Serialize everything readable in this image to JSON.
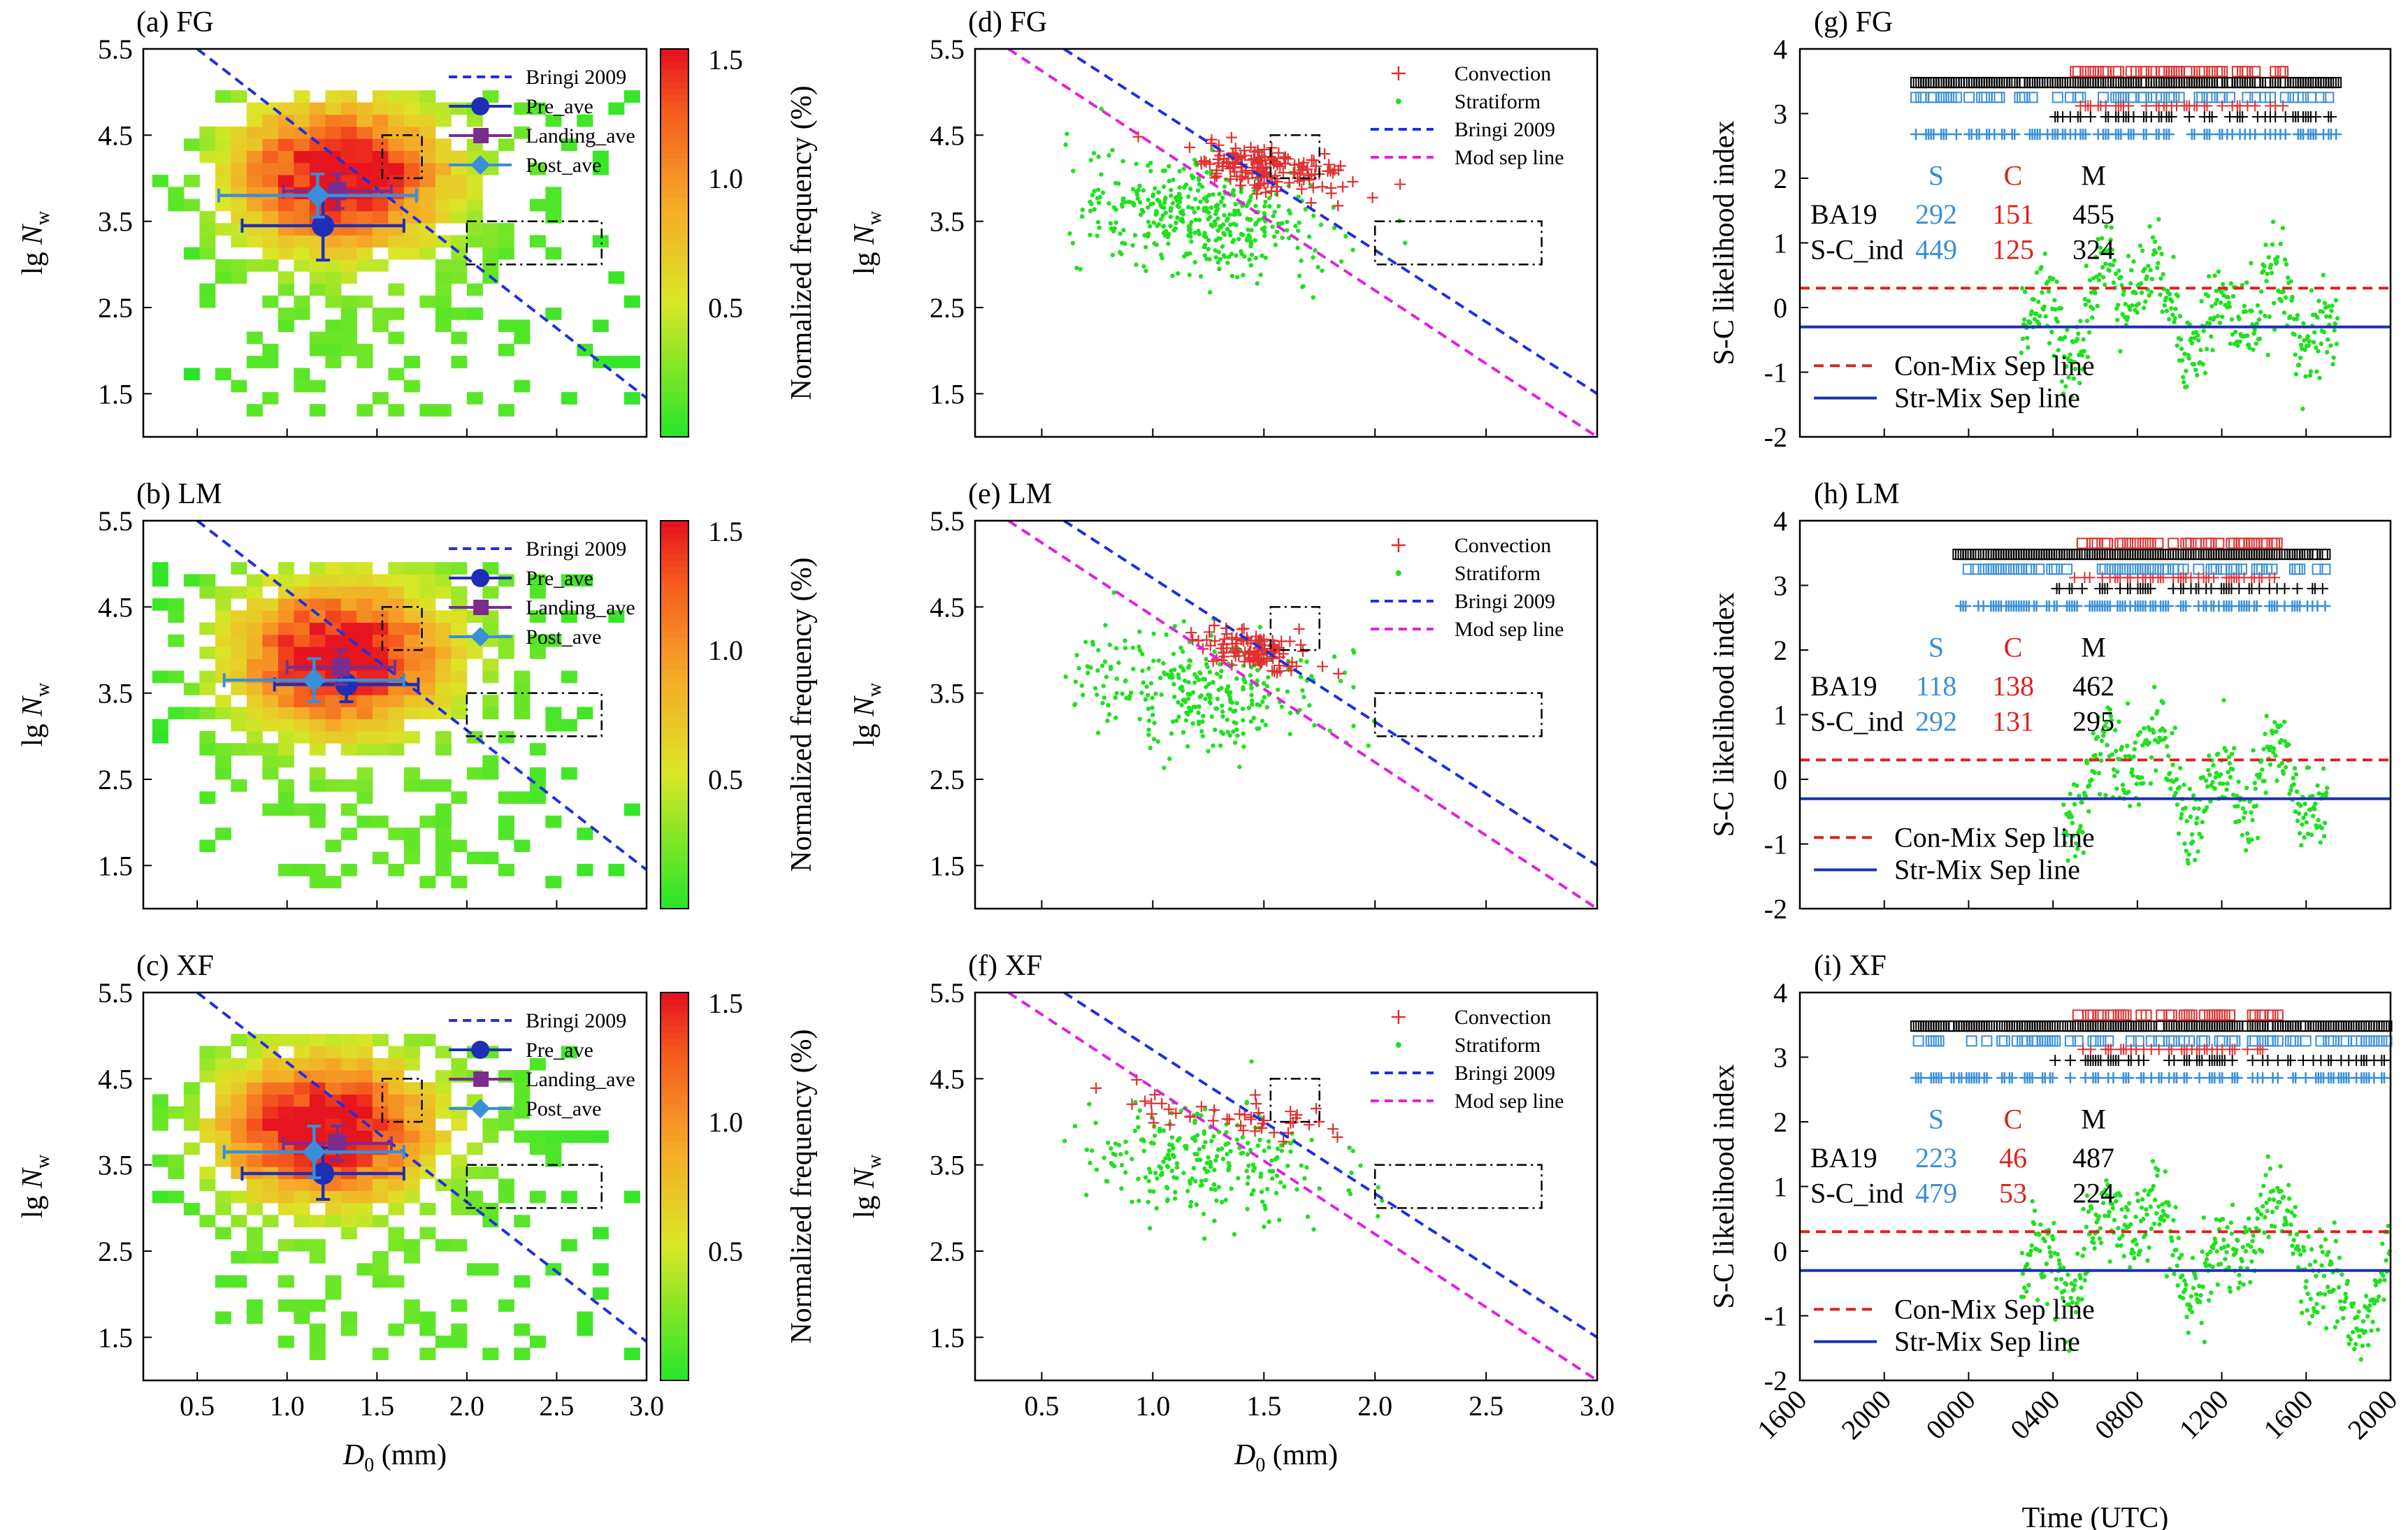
{
  "figure": {
    "xlabel_left": "D₀ (mm)",
    "xlabel_mid": "D₀ (mm)",
    "xlabel_right": "Time (UTC)",
    "ylabel_left": "lg N_w",
    "ylabel_right": "S-C likelihood index",
    "colorbar_label": "Normalized frequency (%)"
  },
  "colors": {
    "pre": "#1f2fb3",
    "landing": "#7b2d8e",
    "post": "#3a8fd8",
    "bringi": "#1f2fe0",
    "modsep": "#e020e0",
    "convection": "#e03030",
    "stratiform": "#20e020",
    "mixed": "#000000",
    "s_text": "#3a8fd8",
    "c_text": "#e02020",
    "conmix": "#e02020",
    "strmix": "#1f2fb3"
  },
  "chart_data": [
    {
      "panel": "a",
      "title": "(a) FG",
      "type": "heatmap",
      "xlim": [
        0.2,
        3.0
      ],
      "ylim": [
        1.0,
        5.5
      ],
      "xticks": [
        "0.5",
        "1.0",
        "1.5",
        "2.0",
        "2.5",
        "3.0"
      ],
      "yticks": [
        "1.5",
        "2.5",
        "3.5",
        "4.5",
        "5.5"
      ],
      "colorbar_ticks": [
        "0.5",
        "1.0",
        "1.5"
      ],
      "legend": [
        "Bringi 2009",
        "Pre_ave",
        "Landing_ave",
        "Post_ave"
      ],
      "averages": [
        {
          "name": "Pre_ave",
          "d0": 1.2,
          "nw": 3.45,
          "d0_err": 0.45,
          "nw_err": 0.4
        },
        {
          "name": "Landing_ave",
          "d0": 1.28,
          "nw": 3.85,
          "d0_err": 0.3,
          "nw_err": 0.2
        },
        {
          "name": "Post_ave",
          "d0": 1.17,
          "nw": 3.8,
          "d0_err": 0.55,
          "nw_err": 0.25
        }
      ]
    },
    {
      "panel": "b",
      "title": "(b) LM",
      "type": "heatmap",
      "xlim": [
        0.2,
        3.0
      ],
      "ylim": [
        1.0,
        5.5
      ],
      "xticks": [
        "0.5",
        "1.0",
        "1.5",
        "2.0",
        "2.5",
        "3.0"
      ],
      "yticks": [
        "1.5",
        "2.5",
        "3.5",
        "4.5",
        "5.5"
      ],
      "colorbar_ticks": [
        "0.5",
        "1.0",
        "1.5"
      ],
      "legend": [
        "Bringi 2009",
        "Pre_ave",
        "Landing_ave",
        "Post_ave"
      ],
      "averages": [
        {
          "name": "Pre_ave",
          "d0": 1.33,
          "nw": 3.6,
          "d0_err": 0.4,
          "nw_err": 0.2
        },
        {
          "name": "Landing_ave",
          "d0": 1.3,
          "nw": 3.8,
          "d0_err": 0.3,
          "nw_err": 0.2
        },
        {
          "name": "Post_ave",
          "d0": 1.15,
          "nw": 3.65,
          "d0_err": 0.5,
          "nw_err": 0.25
        }
      ]
    },
    {
      "panel": "c",
      "title": "(c) XF",
      "type": "heatmap",
      "xlim": [
        0.2,
        3.0
      ],
      "ylim": [
        1.0,
        5.5
      ],
      "xticks": [
        "0.5",
        "1.0",
        "1.5",
        "2.0",
        "2.5",
        "3.0"
      ],
      "yticks": [
        "1.5",
        "2.5",
        "3.5",
        "4.5",
        "5.5"
      ],
      "colorbar_ticks": [
        "0.5",
        "1.0",
        "1.5"
      ],
      "legend": [
        "Bringi 2009",
        "Pre_ave",
        "Landing_ave",
        "Post_ave"
      ],
      "averages": [
        {
          "name": "Pre_ave",
          "d0": 1.2,
          "nw": 3.4,
          "d0_err": 0.45,
          "nw_err": 0.3
        },
        {
          "name": "Landing_ave",
          "d0": 1.28,
          "nw": 3.75,
          "d0_err": 0.3,
          "nw_err": 0.2
        },
        {
          "name": "Post_ave",
          "d0": 1.15,
          "nw": 3.65,
          "d0_err": 0.5,
          "nw_err": 0.3
        }
      ]
    },
    {
      "panel": "d",
      "title": "(d) FG",
      "type": "scatter",
      "xlim": [
        0.2,
        3.0
      ],
      "ylim": [
        1.0,
        5.5
      ],
      "xticks": [
        "0.5",
        "1.0",
        "1.5",
        "2.0",
        "2.5",
        "3.0"
      ],
      "yticks": [
        "1.5",
        "2.5",
        "3.5",
        "4.5",
        "5.5"
      ],
      "legend": [
        "Convection",
        "Stratiform",
        "Bringi 2009",
        "Mod sep line"
      ]
    },
    {
      "panel": "e",
      "title": "(e) LM",
      "type": "scatter",
      "xlim": [
        0.2,
        3.0
      ],
      "ylim": [
        1.0,
        5.5
      ],
      "xticks": [
        "0.5",
        "1.0",
        "1.5",
        "2.0",
        "2.5",
        "3.0"
      ],
      "yticks": [
        "1.5",
        "2.5",
        "3.5",
        "4.5",
        "5.5"
      ],
      "legend": [
        "Convection",
        "Stratiform",
        "Bringi 2009",
        "Mod sep line"
      ]
    },
    {
      "panel": "f",
      "title": "(f) XF",
      "type": "scatter",
      "xlim": [
        0.2,
        3.0
      ],
      "ylim": [
        1.0,
        5.5
      ],
      "xticks": [
        "0.5",
        "1.0",
        "1.5",
        "2.0",
        "2.5",
        "3.0"
      ],
      "yticks": [
        "1.5",
        "2.5",
        "3.5",
        "4.5",
        "5.5"
      ],
      "legend": [
        "Convection",
        "Stratiform",
        "Bringi 2009",
        "Mod sep line"
      ]
    },
    {
      "panel": "g",
      "title": "(g) FG",
      "type": "scatter",
      "ylim": [
        -2,
        4
      ],
      "yticks": [
        "-2",
        "-1",
        "0",
        "1",
        "2",
        "3",
        "4"
      ],
      "xticks": [
        "1600",
        "2000",
        "0000",
        "0400",
        "0800",
        "1200",
        "1600",
        "2000"
      ],
      "conmix": 0.3,
      "strmix": -0.3,
      "legend": [
        "Con-Mix Sep line",
        "Str-Mix Sep line"
      ],
      "counts": {
        "header": [
          "S",
          "C",
          "M"
        ],
        "rows": [
          {
            "label": "BA19",
            "s": "292",
            "c": "151",
            "m": "455"
          },
          {
            "label": "S-C_ind",
            "s": "449",
            "c": "125",
            "m": "324"
          }
        ]
      }
    },
    {
      "panel": "h",
      "title": "(h) LM",
      "type": "scatter",
      "ylim": [
        -2,
        4
      ],
      "yticks": [
        "-2",
        "-1",
        "0",
        "1",
        "2",
        "3",
        "4"
      ],
      "xticks": [
        "1600",
        "2000",
        "0000",
        "0400",
        "0800",
        "1200",
        "1600",
        "2000"
      ],
      "conmix": 0.3,
      "strmix": -0.3,
      "legend": [
        "Con-Mix Sep line",
        "Str-Mix Sep line"
      ],
      "counts": {
        "header": [
          "S",
          "C",
          "M"
        ],
        "rows": [
          {
            "label": "BA19",
            "s": "118",
            "c": "138",
            "m": "462"
          },
          {
            "label": "S-C_ind",
            "s": "292",
            "c": "131",
            "m": "295"
          }
        ]
      }
    },
    {
      "panel": "i",
      "title": "(i) XF",
      "type": "scatter",
      "ylim": [
        -2,
        4
      ],
      "yticks": [
        "-2",
        "-1",
        "0",
        "1",
        "2",
        "3",
        "4"
      ],
      "xticks": [
        "1600",
        "2000",
        "0000",
        "0400",
        "0800",
        "1200",
        "1600",
        "2000"
      ],
      "conmix": 0.3,
      "strmix": -0.3,
      "legend": [
        "Con-Mix Sep line",
        "Str-Mix Sep line"
      ],
      "counts": {
        "header": [
          "S",
          "C",
          "M"
        ],
        "rows": [
          {
            "label": "BA19",
            "s": "223",
            "c": "46",
            "m": "487"
          },
          {
            "label": "S-C_ind",
            "s": "479",
            "c": "53",
            "m": "224"
          }
        ]
      }
    }
  ]
}
